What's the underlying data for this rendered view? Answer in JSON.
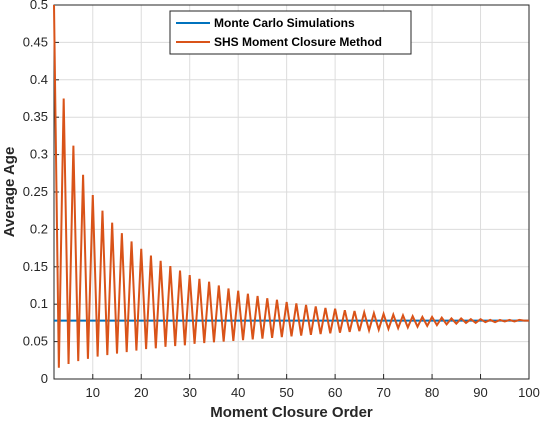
{
  "chart_data": {
    "type": "line",
    "xlabel": "Moment Closure Order",
    "ylabel": "Average Age",
    "xlim": [
      2,
      100
    ],
    "ylim": [
      0,
      0.5
    ],
    "xticks": [
      10,
      20,
      30,
      40,
      50,
      60,
      70,
      80,
      90,
      100
    ],
    "yticks": [
      0,
      0.05,
      0.1,
      0.15,
      0.2,
      0.25,
      0.3,
      0.35,
      0.4,
      0.45,
      0.5
    ],
    "xtick_labels": [
      "10",
      "20",
      "30",
      "40",
      "50",
      "60",
      "70",
      "80",
      "90",
      "100"
    ],
    "ytick_labels": [
      "0",
      "0.05",
      "0.1",
      "0.15",
      "0.2",
      "0.25",
      "0.3",
      "0.35",
      "0.4",
      "0.45",
      "0.5"
    ],
    "grid": true,
    "legend_position": "top-center",
    "series": [
      {
        "name": "Monte Carlo Simulations",
        "color": "#0072BD",
        "x": [
          2,
          100
        ],
        "y": [
          0.078,
          0.078
        ]
      },
      {
        "name": "SHS Moment Closure Method",
        "color": "#D95319",
        "x": [
          2,
          3,
          4,
          5,
          6,
          7,
          8,
          9,
          10,
          11,
          12,
          13,
          14,
          15,
          16,
          17,
          18,
          19,
          20,
          21,
          22,
          23,
          24,
          25,
          26,
          27,
          28,
          29,
          30,
          31,
          32,
          33,
          34,
          35,
          36,
          37,
          38,
          39,
          40,
          41,
          42,
          43,
          44,
          45,
          46,
          47,
          48,
          49,
          50,
          51,
          52,
          53,
          54,
          55,
          56,
          57,
          58,
          59,
          60,
          61,
          62,
          63,
          64,
          65,
          66,
          67,
          68,
          69,
          70,
          71,
          72,
          73,
          74,
          75,
          76,
          77,
          78,
          79,
          80,
          81,
          82,
          83,
          84,
          85,
          86,
          87,
          88,
          89,
          90,
          91,
          92,
          93,
          94,
          95,
          96,
          97,
          98,
          99,
          100
        ],
        "y": [
          0.5,
          0.015,
          0.375,
          0.02,
          0.312,
          0.024,
          0.273,
          0.027,
          0.246,
          0.03,
          0.225,
          0.032,
          0.209,
          0.034,
          0.195,
          0.036,
          0.184,
          0.038,
          0.174,
          0.04,
          0.165,
          0.041,
          0.158,
          0.043,
          0.151,
          0.044,
          0.145,
          0.045,
          0.139,
          0.047,
          0.134,
          0.048,
          0.13,
          0.049,
          0.125,
          0.05,
          0.121,
          0.051,
          0.118,
          0.052,
          0.114,
          0.053,
          0.111,
          0.054,
          0.108,
          0.055,
          0.106,
          0.056,
          0.103,
          0.057,
          0.101,
          0.058,
          0.099,
          0.059,
          0.097,
          0.06,
          0.095,
          0.061,
          0.094,
          0.062,
          0.092,
          0.063,
          0.091,
          0.064,
          0.089,
          0.065,
          0.088,
          0.066,
          0.087,
          0.067,
          0.086,
          0.068,
          0.085,
          0.069,
          0.084,
          0.07,
          0.083,
          0.071,
          0.083,
          0.072,
          0.082,
          0.073,
          0.081,
          0.074,
          0.081,
          0.075,
          0.08,
          0.075,
          0.08,
          0.076,
          0.079,
          0.076,
          0.079,
          0.077,
          0.079,
          0.077,
          0.079,
          0.078,
          0.078
        ]
      }
    ]
  }
}
